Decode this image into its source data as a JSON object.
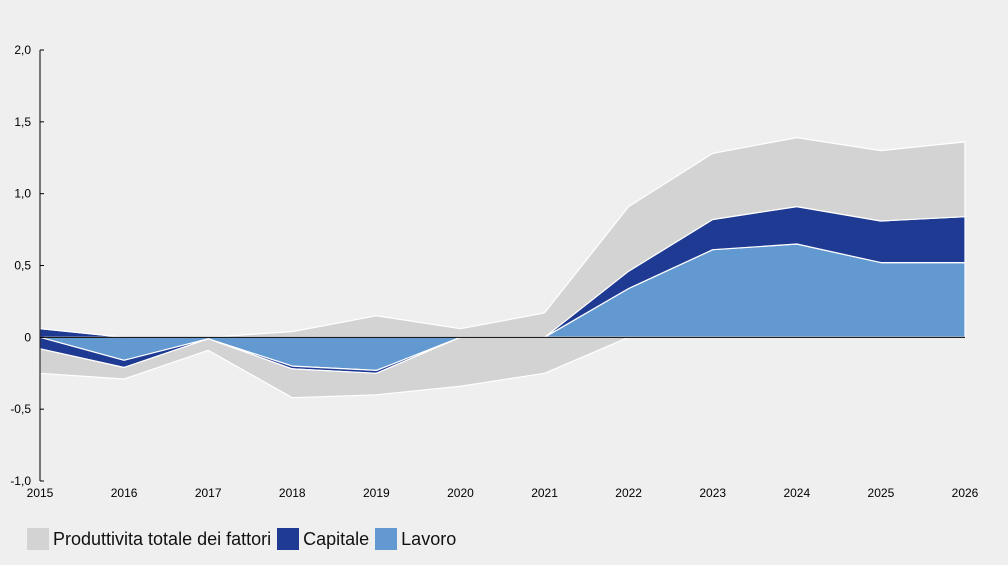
{
  "chart_data": {
    "type": "area",
    "categories": [
      "2015",
      "2016",
      "2017",
      "2018",
      "2019",
      "2020",
      "2021",
      "2022",
      "2023",
      "2024",
      "2025",
      "2026"
    ],
    "yticks": [
      "2,0",
      "1,5",
      "1,0",
      "0,5",
      "0",
      "-0,5",
      "-1,0"
    ],
    "ylim": [
      -1.0,
      2.0
    ],
    "legend_position": "bottom-left",
    "series": [
      {
        "name": "Produttivita totale dei fattori",
        "color": "#d3d3d3",
        "positive": [
          0.0,
          0.0,
          0.0,
          0.04,
          0.15,
          0.06,
          0.17,
          0.45,
          0.46,
          0.48,
          0.49,
          0.52
        ],
        "negative": [
          -0.17,
          -0.08,
          -0.08,
          -0.2,
          -0.15,
          -0.34,
          -0.25,
          0.0,
          0.0,
          0.0,
          0.0,
          0.0
        ]
      },
      {
        "name": "Capitale",
        "color": "#1f3a93",
        "positive": [
          0.06,
          0.0,
          0.0,
          0.0,
          0.0,
          0.0,
          0.0,
          0.12,
          0.21,
          0.26,
          0.29,
          0.32
        ],
        "negative": [
          -0.08,
          -0.05,
          0.0,
          -0.02,
          -0.02,
          0.0,
          0.0,
          0.0,
          0.0,
          0.0,
          0.0,
          0.0
        ]
      },
      {
        "name": "Lavoro",
        "color": "#6399d1",
        "positive": [
          0.0,
          0.0,
          0.0,
          0.0,
          0.0,
          0.0,
          0.0,
          0.34,
          0.61,
          0.65,
          0.52,
          0.52
        ],
        "negative": [
          0.0,
          -0.16,
          -0.01,
          -0.2,
          -0.23,
          0.0,
          0.0,
          0.0,
          0.0,
          0.0,
          0.0,
          0.0
        ]
      }
    ]
  }
}
